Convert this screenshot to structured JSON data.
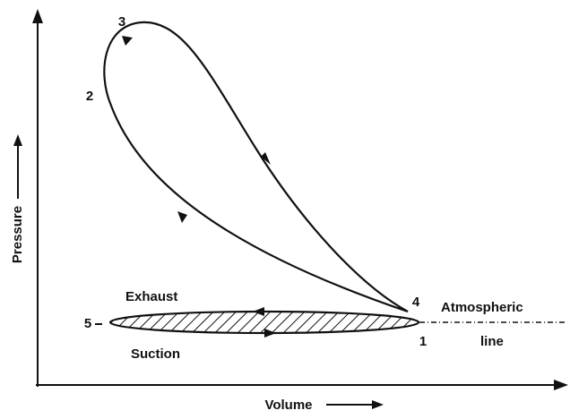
{
  "axes": {
    "x_label": "Volume",
    "y_label": "Pressure"
  },
  "points": {
    "p1": "1",
    "p2": "2",
    "p3": "3",
    "p4": "4",
    "p5": "5"
  },
  "strokes": {
    "exhaust": "Exhaust",
    "suction": "Suction"
  },
  "atmospheric": {
    "line1": "Atmospheric",
    "line2": "line"
  }
}
